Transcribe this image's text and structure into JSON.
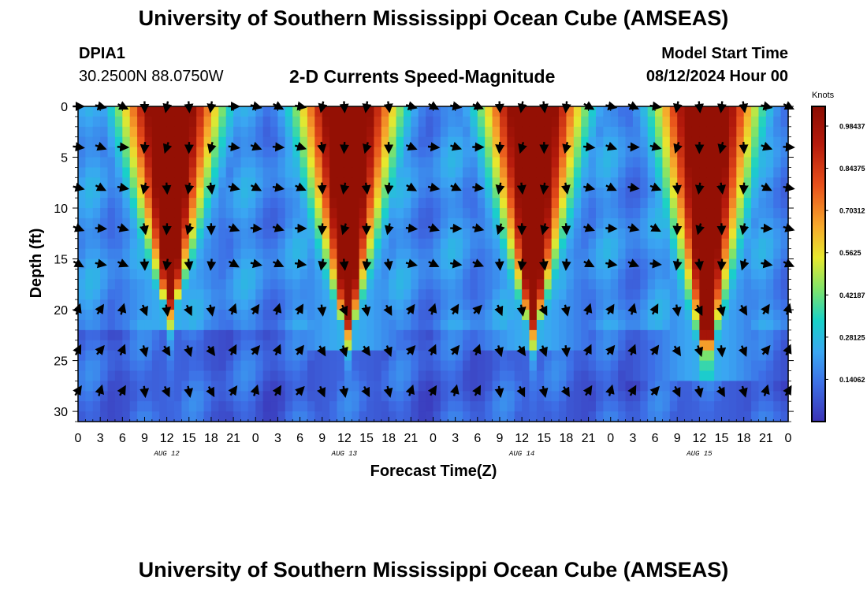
{
  "header": {
    "title": "University of Southern Mississippi Ocean Cube (AMSEAS)",
    "station_id": "DPIA1",
    "station_coords": "30.2500N  88.0750W",
    "product_title": "2-D Currents Speed-Magnitude",
    "model_start_label": "Model Start Time",
    "model_start_value": "08/12/2024 Hour 00"
  },
  "footer": {
    "title": "University of Southern Mississippi Ocean Cube (AMSEAS)"
  },
  "chart_data": {
    "type": "heatmap",
    "title": "2-D Currents Speed-Magnitude",
    "xlabel": "Forecast Time(Z)",
    "ylabel": "Depth (ft)",
    "x_ticks_hours": [
      0,
      3,
      6,
      9,
      12,
      15,
      18,
      21,
      24,
      27,
      30,
      33,
      36,
      39,
      42,
      45,
      48,
      51,
      54,
      57,
      60,
      63,
      66,
      69,
      72,
      75,
      78,
      81,
      84,
      87,
      90,
      93,
      96
    ],
    "x_tick_labels": [
      "0",
      "3",
      "6",
      "9",
      "12",
      "15",
      "18",
      "21",
      "0",
      "3",
      "6",
      "9",
      "12",
      "15",
      "18",
      "21",
      "0",
      "3",
      "6",
      "9",
      "12",
      "15",
      "18",
      "21",
      "0",
      "3",
      "6",
      "9",
      "12",
      "15",
      "18",
      "21",
      "0"
    ],
    "day_labels": [
      {
        "hour": 12,
        "text": "AUG 12"
      },
      {
        "hour": 36,
        "text": "AUG 13"
      },
      {
        "hour": 60,
        "text": "AUG 14"
      },
      {
        "hour": 84,
        "text": "AUG 15"
      }
    ],
    "xlim": [
      0,
      96
    ],
    "y_ticks": [
      0,
      5,
      10,
      15,
      20,
      25,
      30
    ],
    "ylim": [
      0,
      31
    ],
    "y_inverted": true,
    "colorbar": {
      "unit": "Knots",
      "min": 0,
      "max": 1.05,
      "tick_values": [
        0.98437,
        0.84375,
        0.70312,
        0.5625,
        0.42187,
        0.28125,
        0.14062
      ],
      "tick_labels": [
        "0.98437",
        "0.84375",
        "0.70312",
        "0.5625",
        "0.42187",
        "0.28125",
        "0.14062"
      ]
    },
    "speed_peaks": [
      {
        "hour": 12.5,
        "depth_extent": 18.5,
        "peak": 1.0
      },
      {
        "hour": 36.5,
        "depth_extent": 20.5,
        "peak": 1.0
      },
      {
        "hour": 61.5,
        "depth_extent": 20.5,
        "peak": 1.0
      },
      {
        "hour": 85.0,
        "depth_extent": 23.0,
        "peak": 1.0
      }
    ],
    "arrow_rows_depth_ft": [
      0,
      4,
      8,
      12,
      15.5,
      20,
      24,
      28
    ],
    "arrow_columns_hours": [
      0,
      3,
      6,
      9,
      12,
      15,
      18,
      21,
      24,
      27,
      30,
      33,
      36,
      39,
      42,
      45,
      48,
      51,
      54,
      57,
      60,
      63,
      66,
      69,
      72,
      75,
      78,
      81,
      84,
      87,
      90,
      93,
      96
    ]
  }
}
